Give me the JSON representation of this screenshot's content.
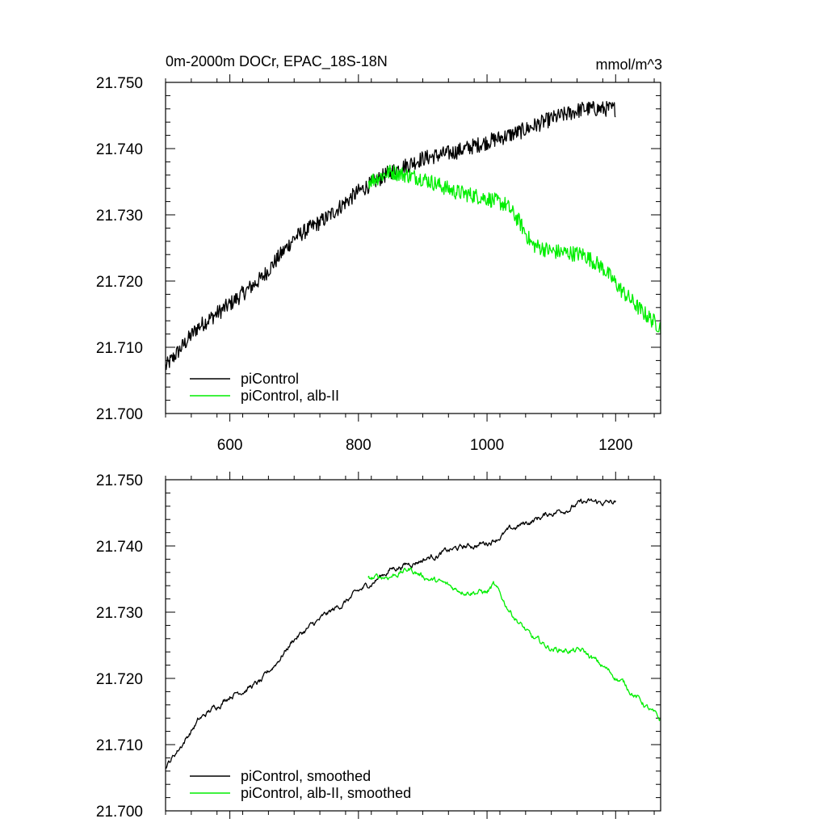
{
  "chart_data": [
    {
      "type": "line",
      "panel": "top",
      "title": "0m-2000m DOCr, EPAC_18S-18N",
      "units": "mmol/m^3",
      "xlim": [
        500,
        1270
      ],
      "ylim": [
        21.7,
        21.75
      ],
      "xticks": [
        600,
        800,
        1000,
        1200
      ],
      "xtick_labels": [
        "600",
        "800",
        "1000",
        "1200"
      ],
      "yticks": [
        21.7,
        21.71,
        21.72,
        21.73,
        21.74,
        21.75
      ],
      "ytick_labels": [
        "21.700",
        "21.710",
        "21.720",
        "21.730",
        "21.740",
        "21.750"
      ],
      "series": [
        {
          "name": "piControl",
          "color": "#000000",
          "x_start": 500,
          "x_end": 1200,
          "trend": [
            [
              500,
              21.707
            ],
            [
              550,
              21.713
            ],
            [
              600,
              21.7165
            ],
            [
              650,
              21.7205
            ],
            [
              700,
              21.7265
            ],
            [
              750,
              21.7295
            ],
            [
              800,
              21.7335
            ],
            [
              850,
              21.7365
            ],
            [
              900,
              21.7385
            ],
            [
              950,
              21.7395
            ],
            [
              1000,
              21.741
            ],
            [
              1050,
              21.7425
            ],
            [
              1100,
              21.7445
            ],
            [
              1150,
              21.746
            ],
            [
              1200,
              21.746
            ]
          ],
          "noise": 0.0012
        },
        {
          "name": "piControl, alb-II",
          "color": "#00ee00",
          "x_start": 815,
          "x_end": 1270,
          "trend": [
            [
              815,
              21.735
            ],
            [
              850,
              21.7365
            ],
            [
              900,
              21.7355
            ],
            [
              950,
              21.7335
            ],
            [
              1000,
              21.7325
            ],
            [
              1030,
              21.7315
            ],
            [
              1050,
              21.729
            ],
            [
              1070,
              21.7255
            ],
            [
              1100,
              21.7245
            ],
            [
              1150,
              21.724
            ],
            [
              1180,
              21.722
            ],
            [
              1210,
              21.7185
            ],
            [
              1240,
              21.7155
            ],
            [
              1270,
              21.713
            ]
          ],
          "noise": 0.0012
        }
      ]
    },
    {
      "type": "line",
      "panel": "bottom",
      "title": "",
      "units": "",
      "xlim": [
        500,
        1270
      ],
      "ylim": [
        21.7,
        21.75
      ],
      "xticks": [
        600,
        800,
        1000,
        1200
      ],
      "xtick_labels": [],
      "yticks": [
        21.7,
        21.71,
        21.72,
        21.73,
        21.74,
        21.75
      ],
      "ytick_labels": [
        "21.700",
        "21.710",
        "21.720",
        "21.730",
        "21.740",
        "21.750"
      ],
      "series": [
        {
          "name": "piControl, smoothed",
          "color": "#000000",
          "x_start": 500,
          "x_end": 1200,
          "trend": [
            [
              500,
              21.7065
            ],
            [
              550,
              21.7135
            ],
            [
              600,
              21.7175
            ],
            [
              650,
              21.7195
            ],
            [
              700,
              21.726
            ],
            [
              750,
              21.7295
            ],
            [
              800,
              21.733
            ],
            [
              850,
              21.7365
            ],
            [
              900,
              21.738
            ],
            [
              950,
              21.7395
            ],
            [
              1000,
              21.7405
            ],
            [
              1050,
              21.743
            ],
            [
              1100,
              21.745
            ],
            [
              1150,
              21.7465
            ],
            [
              1200,
              21.7465
            ]
          ],
          "noise": 0.0003
        },
        {
          "name": "piControl, alb-II, smoothed",
          "color": "#00ee00",
          "x_start": 815,
          "x_end": 1270,
          "trend": [
            [
              815,
              21.735
            ],
            [
              850,
              21.7355
            ],
            [
              880,
              21.7365
            ],
            [
              900,
              21.7355
            ],
            [
              950,
              21.7335
            ],
            [
              1000,
              21.733
            ],
            [
              1010,
              21.734
            ],
            [
              1030,
              21.731
            ],
            [
              1050,
              21.7285
            ],
            [
              1070,
              21.726
            ],
            [
              1100,
              21.7245
            ],
            [
              1150,
              21.724
            ],
            [
              1170,
              21.7225
            ],
            [
              1210,
              21.7195
            ],
            [
              1240,
              21.7165
            ],
            [
              1270,
              21.7135
            ]
          ],
          "noise": 0.0003
        }
      ]
    }
  ]
}
